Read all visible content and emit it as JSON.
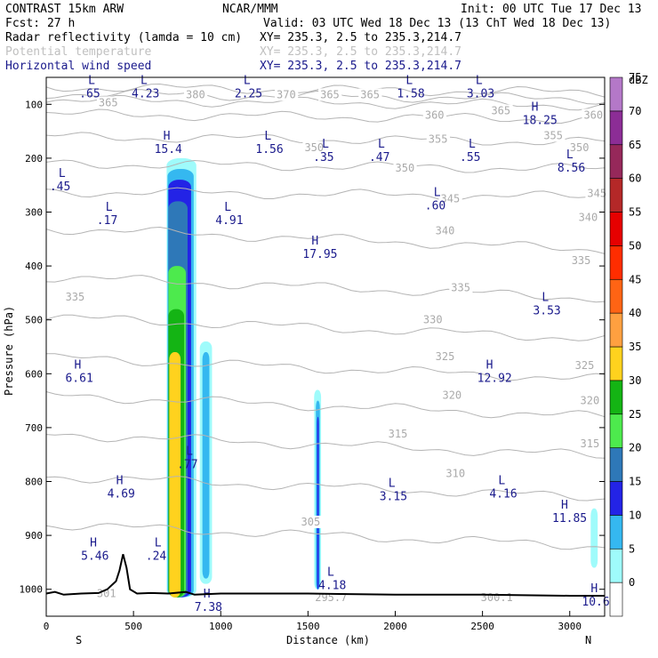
{
  "header": {
    "model": "CONTRAST 15km ARW",
    "org": "NCAR/MMM",
    "init": "Init: 00 UTC Tue 17 Dec 13",
    "fcst": "Fcst:   27 h",
    "valid": "Valid: 03 UTC Wed 18 Dec 13 (13 ChT Wed 18 Dec 13)",
    "field1": "Radar reflectivity (lamda = 10 cm)",
    "field1_xy": "XY= 235.3,  2.5 to 235.3,214.7",
    "field2": "Potential temperature",
    "field2_xy": "XY= 235.3,  2.5 to 235.3,214.7",
    "field3": "Horizontal wind speed",
    "field3_xy": "XY= 235.3,  2.5 to 235.3,214.7"
  },
  "colors": {
    "field2": "#c0c0c0",
    "field3": "#1a1a8c",
    "theta_contour": "#b4b4b4"
  },
  "chart_data": {
    "type": "heatmap",
    "xlabel": "Distance (km)",
    "ylabel": "Pressure (hPa)",
    "xlim": [
      0,
      3200
    ],
    "ylim": [
      1050,
      50
    ],
    "x_ticks": [
      "0",
      "500",
      "1000",
      "1500",
      "2000",
      "2500",
      "3000"
    ],
    "y_ticks": [
      "100",
      "200",
      "300",
      "400",
      "500",
      "600",
      "700",
      "800",
      "900",
      "1000"
    ],
    "x_end_labels": {
      "left": "S",
      "right": "N"
    },
    "colorbar": {
      "unit": "dBZ",
      "levels": [
        "0",
        "5",
        "10",
        "15",
        "20",
        "25",
        "30",
        "35",
        "40",
        "45",
        "50",
        "55",
        "60",
        "65",
        "70",
        "75"
      ],
      "colors": [
        "#ffffff",
        "#9ffbfb",
        "#35b8f0",
        "#2323e6",
        "#2e78b8",
        "#4dea4d",
        "#14b414",
        "#ffd21e",
        "#ffa040",
        "#ff6414",
        "#ff2d00",
        "#e60000",
        "#b42828",
        "#96285a",
        "#8c2d96",
        "#b478c8"
      ]
    },
    "theta_contours": [
      {
        "label": "380",
        "p": 68
      },
      {
        "label": "370",
        "p": 80
      },
      {
        "label": "365",
        "p": 92
      },
      {
        "label": "360",
        "p": 118
      },
      {
        "label": "355",
        "p": 160
      },
      {
        "label": "350",
        "p": 210
      },
      {
        "label": "345",
        "p": 262
      },
      {
        "label": "340",
        "p": 330
      },
      {
        "label": "335",
        "p": 420
      },
      {
        "label": "330",
        "p": 495
      },
      {
        "label": "325",
        "p": 570
      },
      {
        "label": "320",
        "p": 640
      },
      {
        "label": "315",
        "p": 712
      },
      {
        "label": "310",
        "p": 790
      },
      {
        "label": "305",
        "p": 880
      }
    ],
    "theta_labels": [
      {
        "text": "365",
        "x": 300,
        "p": 97
      },
      {
        "text": "380",
        "x": 800,
        "p": 82
      },
      {
        "text": "370",
        "x": 1320,
        "p": 82
      },
      {
        "text": "365",
        "x": 1570,
        "p": 82
      },
      {
        "text": "365",
        "x": 1800,
        "p": 82
      },
      {
        "text": "360",
        "x": 2170,
        "p": 120
      },
      {
        "text": "365",
        "x": 2550,
        "p": 112
      },
      {
        "text": "360",
        "x": 3080,
        "p": 120
      },
      {
        "text": "355",
        "x": 2190,
        "p": 165
      },
      {
        "text": "355",
        "x": 2850,
        "p": 158
      },
      {
        "text": "350",
        "x": 1480,
        "p": 180
      },
      {
        "text": "350",
        "x": 3000,
        "p": 180
      },
      {
        "text": "350",
        "x": 2000,
        "p": 218
      },
      {
        "text": "345",
        "x": 2260,
        "p": 275
      },
      {
        "text": "345",
        "x": 3100,
        "p": 265
      },
      {
        "text": "340",
        "x": 2230,
        "p": 335
      },
      {
        "text": "340",
        "x": 3050,
        "p": 310
      },
      {
        "text": "335",
        "x": 110,
        "p": 458
      },
      {
        "text": "335",
        "x": 2320,
        "p": 440
      },
      {
        "text": "335",
        "x": 3010,
        "p": 390
      },
      {
        "text": "330",
        "x": 2160,
        "p": 500
      },
      {
        "text": "325",
        "x": 2230,
        "p": 568
      },
      {
        "text": "325",
        "x": 3030,
        "p": 585
      },
      {
        "text": "320",
        "x": 2270,
        "p": 640
      },
      {
        "text": "320",
        "x": 3060,
        "p": 650
      },
      {
        "text": "315",
        "x": 1960,
        "p": 712
      },
      {
        "text": "315",
        "x": 3060,
        "p": 730
      },
      {
        "text": "310",
        "x": 2290,
        "p": 785
      },
      {
        "text": "305",
        "x": 1460,
        "p": 875
      },
      {
        "text": "301",
        "x": 290,
        "p": 1008
      },
      {
        "text": "295.7",
        "x": 1540,
        "p": 1015
      },
      {
        "text": "300.1",
        "x": 2490,
        "p": 1015
      }
    ],
    "wind_labels": [
      {
        "kind": "L",
        "value": ".65",
        "x": 220,
        "p": 77
      },
      {
        "kind": "L",
        "value": "4.23",
        "x": 520,
        "p": 77
      },
      {
        "kind": "L",
        "value": "2.25",
        "x": 1110,
        "p": 77
      },
      {
        "kind": "L",
        "value": "1.58",
        "x": 2040,
        "p": 77
      },
      {
        "kind": "L",
        "value": "3.03",
        "x": 2440,
        "p": 77
      },
      {
        "kind": "H",
        "value": "18.25",
        "x": 2760,
        "p": 127
      },
      {
        "kind": "H",
        "value": "15.4",
        "x": 650,
        "p": 180
      },
      {
        "kind": "L",
        "value": "1.56",
        "x": 1230,
        "p": 180
      },
      {
        "kind": "L",
        "value": ".35",
        "x": 1560,
        "p": 195
      },
      {
        "kind": "L",
        "value": ".47",
        "x": 1880,
        "p": 195
      },
      {
        "kind": "L",
        "value": ".55",
        "x": 2400,
        "p": 195
      },
      {
        "kind": "L",
        "value": "8.56",
        "x": 2960,
        "p": 215
      },
      {
        "kind": "L",
        "value": ".45",
        "x": 50,
        "p": 250
      },
      {
        "kind": "L",
        "value": ".60",
        "x": 2200,
        "p": 285
      },
      {
        "kind": "L",
        "value": ".17",
        "x": 320,
        "p": 312
      },
      {
        "kind": "L",
        "value": "4.91",
        "x": 1000,
        "p": 312
      },
      {
        "kind": "H",
        "value": "17.95",
        "x": 1500,
        "p": 375
      },
      {
        "kind": "L",
        "value": "3.53",
        "x": 2820,
        "p": 480
      },
      {
        "kind": "H",
        "value": "6.61",
        "x": 140,
        "p": 605
      },
      {
        "kind": "H",
        "value": "12.92",
        "x": 2500,
        "p": 605
      },
      {
        "kind": "L",
        "value": ".77",
        "x": 780,
        "p": 765
      },
      {
        "kind": "H",
        "value": "4.69",
        "x": 380,
        "p": 820
      },
      {
        "kind": "L",
        "value": "3.15",
        "x": 1940,
        "p": 825
      },
      {
        "kind": "L",
        "value": "4.16",
        "x": 2570,
        "p": 820
      },
      {
        "kind": "H",
        "value": "11.85",
        "x": 2930,
        "p": 865
      },
      {
        "kind": "H",
        "value": "5.46",
        "x": 230,
        "p": 935
      },
      {
        "kind": "L",
        "value": ".24",
        "x": 600,
        "p": 935
      },
      {
        "kind": "L",
        "value": "4.18",
        "x": 1590,
        "p": 990
      },
      {
        "kind": "H",
        "value": "7.38",
        "x": 880,
        "p": 1030
      },
      {
        "kind": "H",
        "value": "10.6",
        "x": 3100,
        "p": 1020
      }
    ],
    "reflectivity_cells": [
      {
        "x0": 690,
        "x1": 860,
        "p_top": 200,
        "p_bot": 1015,
        "level": 5
      },
      {
        "x0": 695,
        "x1": 845,
        "p_top": 220,
        "p_bot": 1015,
        "level": 10
      },
      {
        "x0": 700,
        "x1": 830,
        "p_top": 240,
        "p_bot": 1015,
        "level": 15
      },
      {
        "x0": 700,
        "x1": 810,
        "p_top": 280,
        "p_bot": 1015,
        "level": 20
      },
      {
        "x0": 700,
        "x1": 800,
        "p_top": 400,
        "p_bot": 1015,
        "level": 25
      },
      {
        "x0": 700,
        "x1": 790,
        "p_top": 480,
        "p_bot": 1015,
        "level": 30
      },
      {
        "x0": 705,
        "x1": 770,
        "p_top": 560,
        "p_bot": 1015,
        "level": 35
      },
      {
        "x0": 880,
        "x1": 950,
        "p_top": 540,
        "p_bot": 990,
        "level": 5
      },
      {
        "x0": 895,
        "x1": 935,
        "p_top": 560,
        "p_bot": 980,
        "level": 10
      },
      {
        "x0": 1535,
        "x1": 1575,
        "p_top": 630,
        "p_bot": 1000,
        "level": 5
      },
      {
        "x0": 1545,
        "x1": 1568,
        "p_top": 650,
        "p_bot": 1000,
        "level": 10
      },
      {
        "x0": 1552,
        "x1": 1562,
        "p_top": 680,
        "p_bot": 1000,
        "level": 15
      },
      {
        "x0": 3120,
        "x1": 3160,
        "p_top": 850,
        "p_bot": 960,
        "level": 5
      }
    ],
    "terrain": {
      "x": [
        0,
        50,
        100,
        200,
        300,
        350,
        400,
        420,
        440,
        460,
        480,
        520,
        600,
        700,
        800,
        850,
        1000,
        1500,
        2000,
        2500,
        3000,
        3200
      ],
      "p": [
        1008,
        1005,
        1010,
        1008,
        1007,
        1000,
        985,
        965,
        935,
        960,
        1000,
        1008,
        1007,
        1008,
        1005,
        1010,
        1008,
        1008,
        1010,
        1010,
        1012,
        1012
      ]
    }
  }
}
